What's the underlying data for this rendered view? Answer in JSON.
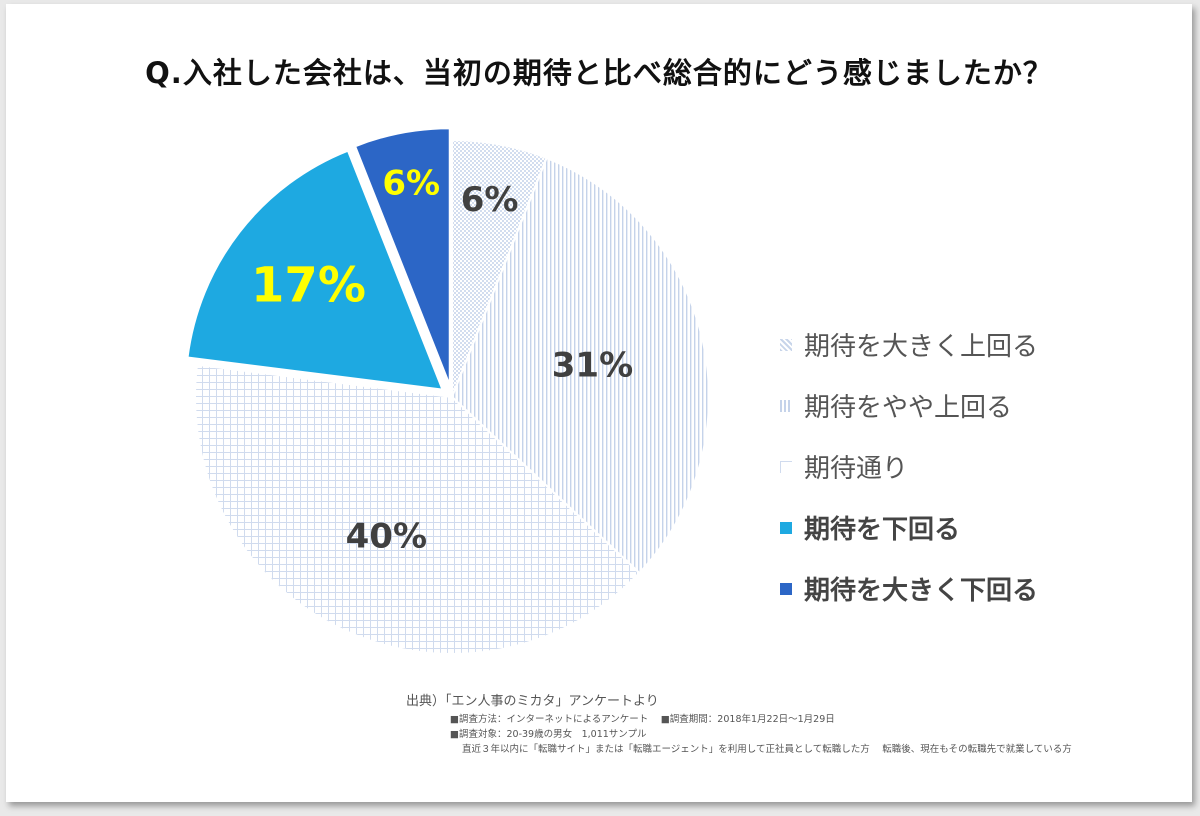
{
  "chart_data": {
    "type": "pie",
    "title": "Q.入社した会社は、当初の期待と比べ総合的にどう感じましたか？",
    "categories": [
      "期待を大きく上回る",
      "期待をやや上回る",
      "期待通り",
      "期待を下回る",
      "期待を大きく下回る"
    ],
    "values": [
      6,
      31,
      40,
      17,
      6
    ],
    "data_labels": [
      "6%",
      "31%",
      "40%",
      "17%",
      "6%"
    ],
    "colors": [
      "#dde6f3",
      "#dde6f3",
      "#dde6f3",
      "#1ea9e1",
      "#2c66c6"
    ],
    "label_colors": [
      "#404040",
      "#404040",
      "#404040",
      "#ffff00",
      "#ffff00"
    ],
    "exploded": [
      false,
      false,
      false,
      true,
      true
    ],
    "legend_position": "right"
  },
  "footer": {
    "source": "出典）「エン人事のミカタ」アンケートより",
    "method": "■調査方法：インターネットによるアンケート　 ■調査期間：2018年1月22日～1月29日",
    "target": "■調査対象：20-39歳の男女　1,011サンプル",
    "condition": "直近３年以内に「転職サイト」または「転職エージェント」を利用して正社員として転職した方　 転職後、現在もその転職先で就業している方"
  }
}
